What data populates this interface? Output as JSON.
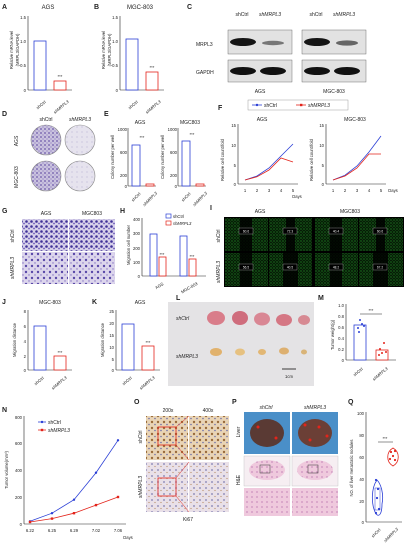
{
  "figure": {
    "colors": {
      "ctrl": "#2b3fd6",
      "kd": "#e3241b",
      "fluor": "#22b52a",
      "stain": "#5a3fa8"
    },
    "panels": {
      "A": {
        "letter": "A",
        "title": "AGS",
        "ylabel_1": "Relative mRNA level",
        "ylabel_2": "(MRPL3/GAPDH)",
        "y_ticks": [
          "1.5",
          "1.0",
          "0.5",
          "0"
        ],
        "x": [
          "shCtrl",
          "shMRPL3"
        ],
        "sig": "***"
      },
      "B": {
        "letter": "B",
        "title": "MGC-803",
        "ylabel_1": "Relative mRNA level",
        "ylabel_2": "(MRPL3/GAPDH)",
        "y_ticks": [
          "1.5",
          "1.0",
          "0.5",
          "0"
        ],
        "x": [
          "shCtrl",
          "shMRPL3"
        ],
        "sig": "***"
      },
      "C": {
        "letter": "C",
        "col_ctrl": "shCtrl",
        "col_kd": "shMRPL3",
        "row1": "MRPL3",
        "row2": "GAPDH",
        "cell1": "AGS",
        "cell2": "MGC-803"
      },
      "D": {
        "letter": "D",
        "col_ctrl": "shCtrl",
        "col_kd": "shMRPL3",
        "row1": "AGS",
        "row2": "MGC-803"
      },
      "E": {
        "letter": "E",
        "title1": "AGS",
        "title2": "MGC803",
        "ylabel": "Colony number per well",
        "y_ticks": [
          "1000",
          "800",
          "600",
          "400",
          "200",
          "0"
        ],
        "x": [
          "shCtrl",
          "shMRPL3"
        ],
        "sig": "***"
      },
      "F": {
        "letter": "F",
        "legend_ctrl": "shCtrl",
        "legend_kd": "shMRPL3",
        "title1": "AGS",
        "title2": "MGC-803",
        "ylabel": "Relative cell count/fold",
        "y_ticks": [
          "15",
          "10",
          "5",
          "0"
        ],
        "x_ticks": [
          "1",
          "2",
          "3",
          "4",
          "5"
        ],
        "xunit": "Days"
      },
      "G": {
        "letter": "G",
        "col1": "AGS",
        "col2": "MGC803",
        "row1": "shCtrl",
        "row2": "shMRPL3"
      },
      "H": {
        "letter": "H",
        "ylabel": "Migration cell number",
        "y_ticks": [
          "400",
          "300",
          "200",
          "100",
          "0"
        ],
        "x": [
          "AGS",
          "MGC-803"
        ],
        "legend_ctrl": "shCtrl",
        "legend_kd": "shMRPL3",
        "sig": "***"
      },
      "I": {
        "letter": "I",
        "col1": "AGS",
        "col2": "MGC803",
        "row1": "shCtrl",
        "row2": "shMRPL3"
      },
      "J": {
        "letter": "J",
        "title": "MGC-803",
        "ylabel": "Migration distance",
        "y_ticks": [
          "8",
          "6",
          "4",
          "2",
          "0"
        ],
        "x": [
          "shCtrl",
          "shMRPL3"
        ],
        "sig": "***"
      },
      "K": {
        "letter": "K",
        "title": "AGS",
        "ylabel": "Migration distance",
        "y_ticks": [
          "25",
          "20",
          "15",
          "10",
          "5",
          "0"
        ],
        "x": [
          "shCtrl",
          "shMRPL3"
        ],
        "sig": "***"
      },
      "L": {
        "letter": "L",
        "row1": "shCtrl",
        "row2": "shMRPL3",
        "scale": "1cm"
      },
      "M": {
        "letter": "M",
        "ylabel": "Tumor weight(g)",
        "y_ticks": [
          "1.0",
          "0.8",
          "0.6",
          "0.4",
          "0.2",
          "0"
        ],
        "x": [
          "shCtrl",
          "shMRPL3"
        ],
        "sig": "***"
      },
      "N": {
        "letter": "N",
        "legend_ctrl": "shCtrl",
        "legend_kd": "shMRPL3",
        "ylabel": "Tumor volume(mm³)",
        "y_ticks": [
          "800",
          "600",
          "400",
          "200",
          "0"
        ],
        "x_ticks": [
          "6.22",
          "6.25",
          "6.29",
          "7.02",
          "7.06"
        ],
        "xunit": "Days"
      },
      "O": {
        "letter": "O",
        "col1": "200x",
        "col2": "400x",
        "row1": "shCtrl",
        "row2": "shMRPL3",
        "caption": "Ki67"
      },
      "P": {
        "letter": "P",
        "col1": "shCtrl",
        "col2": "shMRPL3",
        "row1": "Liver",
        "row2": "H&E"
      },
      "Q": {
        "letter": "Q",
        "ylabel": "NO. of liver metastatic nodules",
        "y_ticks": [
          "100",
          "80",
          "60",
          "40",
          "20",
          "0"
        ],
        "x": [
          "shCtrl",
          "shMRPL3"
        ],
        "sig": "***"
      }
    },
    "fluor_values": [
      "60.6",
      "72.3",
      "40.4",
      "60.6",
      "56.5",
      "40.5",
      "48.2",
      "67.2"
    ]
  },
  "chart_data": [
    {
      "panel": "A",
      "type": "bar",
      "categories": [
        "shCtrl",
        "shMRPL3"
      ],
      "values": [
        1.0,
        0.2
      ],
      "ylim": [
        0,
        1.5
      ]
    },
    {
      "panel": "B",
      "type": "bar",
      "categories": [
        "shCtrl",
        "shMRPL3"
      ],
      "values": [
        1.05,
        0.38
      ],
      "ylim": [
        0,
        1.5
      ]
    },
    {
      "panel": "E-AGS",
      "type": "bar",
      "categories": [
        "shCtrl",
        "shMRPL3"
      ],
      "values": [
        720,
        30
      ],
      "ylim": [
        0,
        1000
      ]
    },
    {
      "panel": "E-MGC803",
      "type": "bar",
      "categories": [
        "shCtrl",
        "shMRPL3"
      ],
      "values": [
        790,
        25
      ],
      "ylim": [
        0,
        1000
      ]
    },
    {
      "panel": "F-AGS",
      "type": "line",
      "x": [
        1,
        2,
        3,
        4,
        5
      ],
      "series": [
        {
          "name": "shCtrl",
          "values": [
            1,
            2,
            4,
            7,
            10
          ]
        },
        {
          "name": "shMRPL3",
          "values": [
            1,
            1.8,
            3.5,
            6.5,
            5.5
          ]
        }
      ],
      "ylim": [
        0,
        15
      ]
    },
    {
      "panel": "F-MGC803",
      "type": "line",
      "x": [
        1,
        2,
        3,
        4,
        5
      ],
      "series": [
        {
          "name": "shCtrl",
          "values": [
            1,
            2.2,
            4.5,
            8,
            12
          ]
        },
        {
          "name": "shMRPL3",
          "values": [
            1,
            2,
            4,
            7.5,
            7.5
          ]
        }
      ],
      "ylim": [
        0,
        15
      ]
    },
    {
      "panel": "H",
      "type": "bar",
      "categories": [
        "AGS",
        "MGC-803"
      ],
      "series": [
        {
          "name": "shCtrl",
          "values": [
            290,
            280
          ]
        },
        {
          "name": "shMRPL3",
          "values": [
            130,
            115
          ]
        }
      ],
      "ylim": [
        0,
        400
      ]
    },
    {
      "panel": "J",
      "type": "bar",
      "categories": [
        "shCtrl",
        "shMRPL3"
      ],
      "values": [
        5.8,
        1.9
      ],
      "ylim": [
        0,
        8
      ]
    },
    {
      "panel": "K",
      "type": "bar",
      "categories": [
        "shCtrl",
        "shMRPL3"
      ],
      "values": [
        19,
        9.8
      ],
      "ylim": [
        0,
        25
      ]
    },
    {
      "panel": "M",
      "type": "scatter",
      "categories": [
        "shCtrl",
        "shMRPL3"
      ],
      "series": [
        {
          "name": "shCtrl",
          "values": [
            0.58,
            0.66,
            0.72,
            0.62,
            0.5
          ]
        },
        {
          "name": "shMRPL3",
          "values": [
            0.2,
            0.3,
            0.12,
            0.14,
            0.1
          ]
        }
      ],
      "ylim": [
        0,
        1.0
      ]
    },
    {
      "panel": "N",
      "type": "line",
      "x": [
        "6.22",
        "6.25",
        "6.29",
        "7.02",
        "7.06"
      ],
      "series": [
        {
          "name": "shCtrl",
          "values": [
            20,
            80,
            180,
            380,
            620
          ]
        },
        {
          "name": "shMRPL3",
          "values": [
            15,
            40,
            80,
            140,
            200
          ]
        }
      ],
      "ylim": [
        0,
        800
      ]
    },
    {
      "panel": "Q",
      "type": "box",
      "categories": [
        "shCtrl",
        "shMRPL3"
      ],
      "series": [
        {
          "name": "shCtrl",
          "values": [
            8,
            12,
            22,
            30,
            38
          ]
        },
        {
          "name": "shMRPL3",
          "values": [
            58,
            62,
            65,
            68,
            72
          ]
        }
      ],
      "ylim": [
        0,
        100
      ]
    }
  ]
}
